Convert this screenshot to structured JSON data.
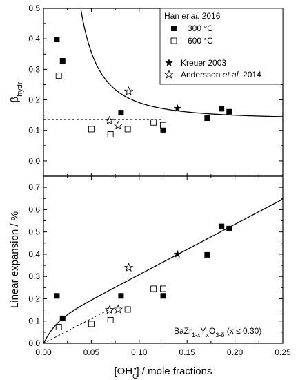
{
  "chart_data": [
    {
      "type": "scatter",
      "panel": "top",
      "ylabel": "β",
      "ylabel_sub": "hydr",
      "xlim": [
        0.0,
        0.25
      ],
      "ylim": [
        -0.05,
        0.5
      ],
      "yticks": [
        "0.0",
        "0.1",
        "0.2",
        "0.3",
        "0.4",
        "0.5"
      ],
      "legend_title_prefix": "Han ",
      "legend_title_italic": "et al.",
      "legend_title_suffix": " 2016",
      "legend_entries": [
        {
          "label": "300 °C",
          "marker": "square-filled"
        },
        {
          "label": "600 °C",
          "marker": "square-open"
        },
        {
          "label": "Kreuer 2003",
          "marker": "star-filled"
        },
        {
          "label_prefix": "Andersson ",
          "label_italic": "et al.",
          "label_suffix": " 2014",
          "marker": "star-open"
        }
      ],
      "legend_position": "top-right",
      "series": [
        {
          "name": "300 °C",
          "marker": "square-filled",
          "x": [
            0.014,
            0.02,
            0.081,
            0.125,
            0.171,
            0.186,
            0.194
          ],
          "y": [
            0.398,
            0.328,
            0.158,
            0.102,
            0.14,
            0.171,
            0.161
          ]
        },
        {
          "name": "600 °C",
          "marker": "square-open",
          "x": [
            0.016,
            0.05,
            0.07,
            0.088,
            0.115,
            0.125
          ],
          "y": [
            0.279,
            0.104,
            0.087,
            0.104,
            0.126,
            0.117
          ]
        },
        {
          "name": "Kreuer 2003",
          "marker": "star-filled",
          "x": [
            0.14
          ],
          "y": [
            0.172
          ]
        },
        {
          "name": "Andersson et al. 2014",
          "marker": "star-open",
          "x": [
            0.069,
            0.078,
            0.089
          ],
          "y": [
            0.132,
            0.116,
            0.228
          ]
        }
      ]
    },
    {
      "type": "scatter",
      "panel": "bottom",
      "xlabel_prefix": "[OH",
      "xlabel_sub": "O",
      "xlabel_sup": "•",
      "xlabel_suffix": "] / mole fractions",
      "ylabel": "Linear expansion / %",
      "xlim": [
        0.0,
        0.25
      ],
      "ylim": [
        0.0,
        0.75
      ],
      "xticks": [
        "0.00",
        "0.05",
        "0.10",
        "0.15",
        "0.20",
        "0.25"
      ],
      "yticks": [
        "0.0",
        "0.1",
        "0.2",
        "0.3",
        "0.4",
        "0.5",
        "0.6",
        "0.7"
      ],
      "annotation": {
        "prefix": "BaZr",
        "sub1": "1-x",
        "mid1": "Y",
        "sub2": "x",
        "mid2": "O",
        "sub3": "3-δ",
        "suffix": " (x ≤ 0.30)"
      },
      "series": [
        {
          "name": "300 °C",
          "marker": "square-filled",
          "x": [
            0.014,
            0.02,
            0.081,
            0.125,
            0.171,
            0.186,
            0.194
          ],
          "y": [
            0.213,
            0.112,
            0.213,
            0.213,
            0.397,
            0.525,
            0.515
          ]
        },
        {
          "name": "600 °C",
          "marker": "square-open",
          "x": [
            0.016,
            0.05,
            0.07,
            0.088,
            0.115,
            0.125
          ],
          "y": [
            0.073,
            0.087,
            0.104,
            0.152,
            0.245,
            0.245
          ]
        },
        {
          "name": "Kreuer 2003",
          "marker": "star-filled",
          "x": [
            0.14
          ],
          "y": [
            0.4
          ]
        },
        {
          "name": "Andersson et al. 2014",
          "marker": "star-open",
          "x": [
            0.069,
            0.078,
            0.089
          ],
          "y": [
            0.15,
            0.152,
            0.34
          ]
        }
      ]
    }
  ]
}
